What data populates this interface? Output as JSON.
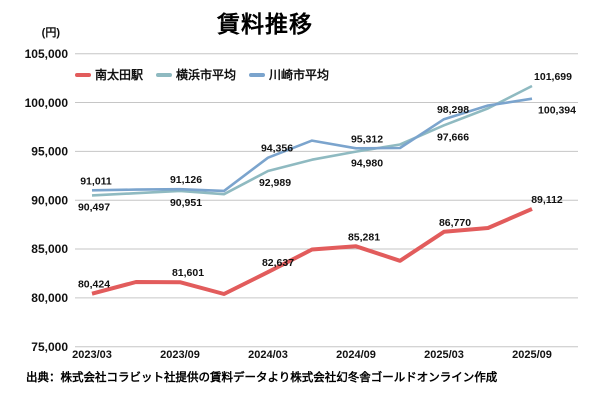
{
  "source_note": "出典：株式会社コラビット社提供の賃料データより株式会社幻冬舎ゴールドオンライン作成",
  "chart_data": {
    "type": "line",
    "title": "賃料推移",
    "y_unit": "(円)",
    "ylim": [
      75000,
      105000
    ],
    "y_ticks": [
      75000,
      80000,
      85000,
      90000,
      95000,
      100000,
      105000
    ],
    "grid": true,
    "legend_position": "top-left-inside",
    "x": [
      "2023/03",
      "2023/06",
      "2023/09",
      "2023/12",
      "2024/03",
      "2024/06",
      "2024/09",
      "2024/12",
      "2025/03",
      "2025/06",
      "2025/09"
    ],
    "x_tick_indices": [
      0,
      2,
      4,
      6,
      8,
      10
    ],
    "x_tick_labels": [
      "2023/03",
      "2023/09",
      "2024/03",
      "2024/09",
      "2025/03",
      "2025/09"
    ],
    "series": [
      {
        "name": "南太田駅",
        "color": "#e25c5c",
        "line_width": 4,
        "values": [
          80424,
          81620,
          81601,
          80400,
          82637,
          84950,
          85281,
          83800,
          86770,
          87150,
          89112
        ],
        "labeled_values": [
          80424,
          81601,
          82637,
          85281,
          86770,
          89112
        ],
        "point_labels": [
          {
            "i": 0,
            "text": "80,424",
            "pos": "above",
            "dx": 2
          },
          {
            "i": 2,
            "text": "81,601",
            "pos": "above",
            "dx": 8
          },
          {
            "i": 4,
            "text": "82,637",
            "pos": "above",
            "dx": 10
          },
          {
            "i": 6,
            "text": "85,281",
            "pos": "above",
            "dx": 8
          },
          {
            "i": 8,
            "text": "86,770",
            "pos": "above",
            "dx": 11
          },
          {
            "i": 10,
            "text": "89,112",
            "pos": "above",
            "dx": 15
          }
        ]
      },
      {
        "name": "横浜市平均",
        "color": "#8fbac1",
        "line_width": 2.6,
        "values": [
          90497,
          90720,
          90951,
          90620,
          92989,
          94150,
          94980,
          95700,
          97666,
          99400,
          101699
        ],
        "labeled_values": [
          90497,
          90951,
          92989,
          94980,
          97666,
          101699
        ],
        "point_labels": [
          {
            "i": 0,
            "text": "90,497",
            "pos": "below",
            "dx": 2
          },
          {
            "i": 2,
            "text": "90,951",
            "pos": "below",
            "dx": 6
          },
          {
            "i": 4,
            "text": "92,989",
            "pos": "below",
            "dx": 7
          },
          {
            "i": 6,
            "text": "94,980",
            "pos": "below",
            "dx": 11
          },
          {
            "i": 8,
            "text": "97,666",
            "pos": "below",
            "dx": 9
          },
          {
            "i": 10,
            "text": "101,699",
            "pos": "above",
            "dx": 21
          }
        ]
      },
      {
        "name": "川崎市平均",
        "color": "#7ba4cd",
        "line_width": 2.6,
        "values": [
          91011,
          91090,
          91126,
          90950,
          94356,
          96100,
          95312,
          95350,
          98298,
          99700,
          100394
        ],
        "labeled_values": [
          91011,
          91126,
          94356,
          95312,
          98298,
          100394
        ],
        "point_labels": [
          {
            "i": 0,
            "text": "91,011",
            "pos": "above",
            "dx": 4
          },
          {
            "i": 2,
            "text": "91,126",
            "pos": "above",
            "dx": 6
          },
          {
            "i": 4,
            "text": "94,356",
            "pos": "above",
            "dx": 9
          },
          {
            "i": 6,
            "text": "95,312",
            "pos": "above",
            "dx": 11
          },
          {
            "i": 8,
            "text": "98,298",
            "pos": "above",
            "dx": 9
          },
          {
            "i": 10,
            "text": "100,394",
            "pos": "below",
            "dx": 25
          }
        ]
      }
    ]
  }
}
